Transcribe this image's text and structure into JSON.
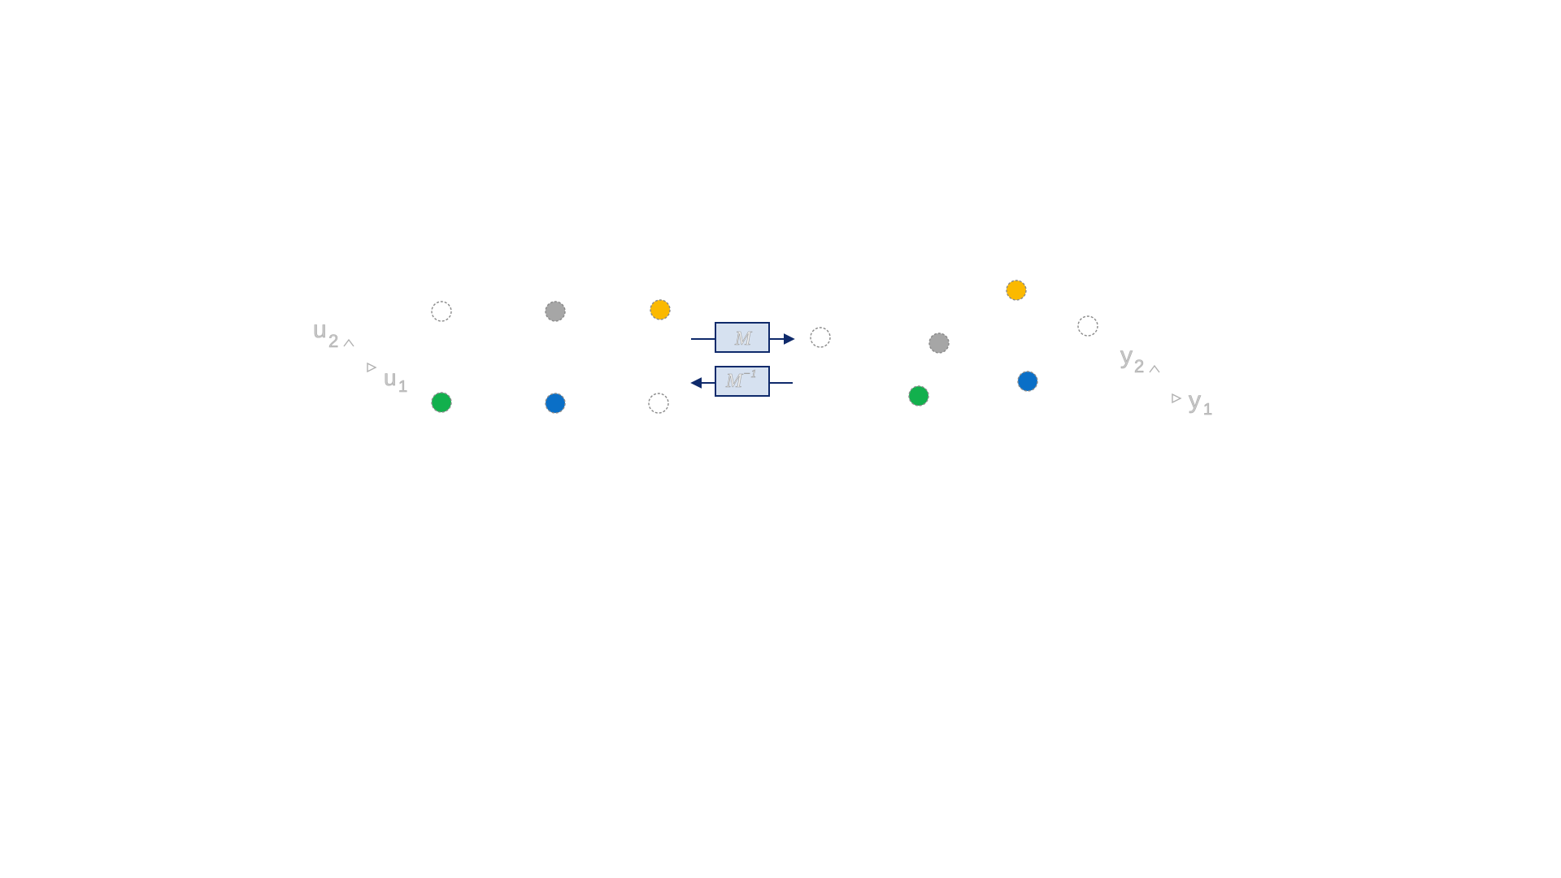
{
  "colors": {
    "white": "#ffffff",
    "gray": "#a6a6a6",
    "gold": "#fbb900",
    "green": "#12b04d",
    "blue": "#0a6fc7",
    "navy": "#0f2a6b",
    "box_fill": "#d6e1f0"
  },
  "left_panel": {
    "axis_vertical": "u",
    "axis_vertical_sub": "2",
    "axis_horizontal": "u",
    "axis_horizontal_sub": "1",
    "points": [
      {
        "color": "white"
      },
      {
        "color": "gray"
      },
      {
        "color": "gold"
      },
      {
        "color": "green"
      },
      {
        "color": "blue"
      },
      {
        "color": "white"
      }
    ]
  },
  "operators": {
    "forward": {
      "label": "M",
      "direction": "right"
    },
    "inverse": {
      "label": "M",
      "superscript": "−1",
      "direction": "left"
    }
  },
  "right_panel": {
    "axis_vertical": "y",
    "axis_vertical_sub": "2",
    "axis_horizontal": "y",
    "axis_horizontal_sub": "1",
    "points": [
      {
        "color": "white"
      },
      {
        "color": "gray"
      },
      {
        "color": "gold"
      },
      {
        "color": "white"
      },
      {
        "color": "green"
      },
      {
        "color": "blue"
      }
    ]
  }
}
